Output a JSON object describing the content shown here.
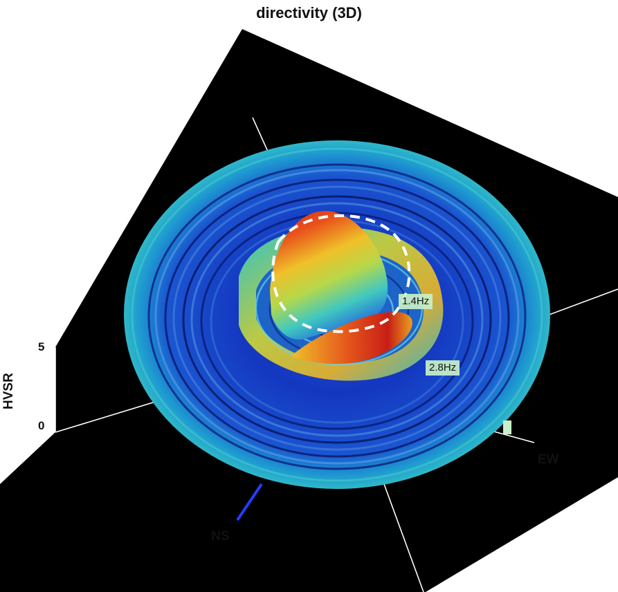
{
  "chart_data": {
    "type": "surface",
    "title": "directivity (3D)",
    "zlabel": "HVSR",
    "z_ticks": [
      "5",
      "0"
    ],
    "axis_labels": {
      "ns": "NS",
      "ew": "EW"
    },
    "peak_labels": [
      {
        "text": "1.4Hz",
        "frequency": 1.4
      },
      {
        "text": "2.8Hz",
        "frequency": 2.8
      }
    ],
    "colormap": "jet",
    "background": "#000000",
    "highlight_ring": {
      "style": "dashed",
      "color": "#ffffff",
      "frequency": 1.4
    }
  }
}
